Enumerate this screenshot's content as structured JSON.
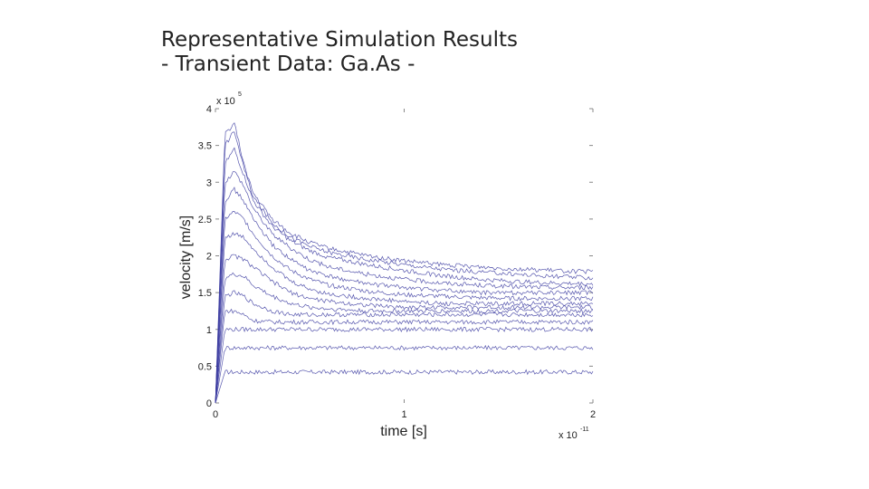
{
  "slide": {
    "title_line1": "Representative Simulation Results",
    "title_line2": "- Transient Data: Ga.As -"
  },
  "chart_data": {
    "type": "line",
    "xlabel": "time [s]",
    "ylabel": "velocity [m/s]",
    "x_multiplier": "x 10",
    "x_multiplier_exp": "-11",
    "y_multiplier": "x 10",
    "y_multiplier_exp": "5",
    "xlim": [
      0,
      2
    ],
    "ylim": [
      0,
      4
    ],
    "x_ticks": [
      "0",
      "1",
      "2"
    ],
    "y_ticks": [
      "0",
      "0.5",
      "1",
      "1.5",
      "2",
      "2.5",
      "3",
      "3.5",
      "4"
    ],
    "grid": false,
    "line_color": "#3a3aa0",
    "x": [
      0,
      0.05,
      0.1,
      0.15,
      0.2,
      0.3,
      0.4,
      0.5,
      0.6,
      0.8,
      1.0,
      1.2,
      1.4,
      1.6,
      1.8,
      2.0
    ],
    "series": [
      {
        "values": [
          0,
          0.42,
          0.42,
          0.42,
          0.42,
          0.42,
          0.42,
          0.42,
          0.42,
          0.42,
          0.42,
          0.42,
          0.42,
          0.42,
          0.42,
          0.42
        ]
      },
      {
        "values": [
          0,
          0.75,
          0.75,
          0.75,
          0.75,
          0.75,
          0.75,
          0.75,
          0.75,
          0.75,
          0.75,
          0.75,
          0.75,
          0.75,
          0.75,
          0.75
        ]
      },
      {
        "values": [
          0,
          1.0,
          1.0,
          1.0,
          1.0,
          1.0,
          1.0,
          1.0,
          1.0,
          1.0,
          1.0,
          1.0,
          1.0,
          1.0,
          1.0,
          1.0
        ]
      },
      {
        "values": [
          0,
          1.25,
          1.25,
          1.2,
          1.12,
          1.1,
          1.1,
          1.1,
          1.1,
          1.1,
          1.1,
          1.1,
          1.1,
          1.1,
          1.1,
          1.1
        ]
      },
      {
        "values": [
          0,
          1.45,
          1.5,
          1.45,
          1.35,
          1.25,
          1.2,
          1.2,
          1.2,
          1.2,
          1.2,
          1.2,
          1.2,
          1.2,
          1.2,
          1.2
        ]
      },
      {
        "values": [
          0,
          1.7,
          1.75,
          1.72,
          1.6,
          1.45,
          1.35,
          1.3,
          1.28,
          1.25,
          1.25,
          1.25,
          1.25,
          1.25,
          1.25,
          1.25
        ]
      },
      {
        "values": [
          0,
          1.95,
          2.0,
          1.95,
          1.85,
          1.65,
          1.5,
          1.42,
          1.38,
          1.33,
          1.3,
          1.3,
          1.3,
          1.3,
          1.3,
          1.3
        ]
      },
      {
        "values": [
          0,
          2.25,
          2.3,
          2.25,
          2.1,
          1.85,
          1.65,
          1.55,
          1.48,
          1.42,
          1.38,
          1.35,
          1.35,
          1.35,
          1.35,
          1.35
        ]
      },
      {
        "values": [
          0,
          2.5,
          2.6,
          2.5,
          2.3,
          2.0,
          1.8,
          1.68,
          1.6,
          1.52,
          1.47,
          1.45,
          1.43,
          1.42,
          1.42,
          1.42
        ]
      },
      {
        "values": [
          0,
          2.75,
          2.9,
          2.75,
          2.5,
          2.15,
          1.95,
          1.8,
          1.72,
          1.62,
          1.57,
          1.53,
          1.5,
          1.5,
          1.5,
          1.5
        ]
      },
      {
        "values": [
          0,
          3.0,
          3.15,
          2.95,
          2.65,
          2.3,
          2.1,
          1.95,
          1.85,
          1.75,
          1.68,
          1.63,
          1.6,
          1.58,
          1.57,
          1.57
        ]
      },
      {
        "values": [
          0,
          3.25,
          3.45,
          3.1,
          2.75,
          2.4,
          2.2,
          2.07,
          1.98,
          1.88,
          1.8,
          1.73,
          1.68,
          1.65,
          1.63,
          1.62
        ]
      },
      {
        "values": [
          0,
          3.5,
          3.7,
          3.2,
          2.8,
          2.45,
          2.25,
          2.13,
          2.05,
          1.95,
          1.88,
          1.82,
          1.78,
          1.75,
          1.72,
          1.7
        ]
      },
      {
        "values": [
          0,
          3.65,
          3.8,
          3.25,
          2.85,
          2.5,
          2.3,
          2.18,
          2.1,
          2.0,
          1.93,
          1.88,
          1.85,
          1.82,
          1.8,
          1.78
        ]
      }
    ]
  }
}
